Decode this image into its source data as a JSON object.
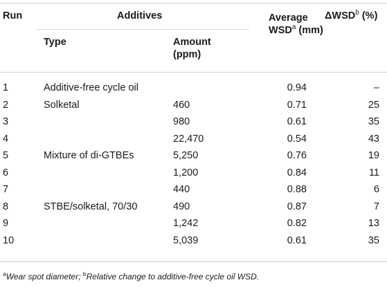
{
  "headers": {
    "run": "Run",
    "additives": "Additives",
    "type": "Type",
    "amount_line1": "Amount",
    "amount_line2": "(ppm)",
    "wsd_line1": "Average",
    "wsd_line2_main": "WSD",
    "wsd_sup": "a",
    "wsd_unit": " (mm)",
    "delta_symbol": "Δ",
    "delta_main": "WSD",
    "delta_sup": "b",
    "delta_unit": " (%)"
  },
  "rows": [
    {
      "run": "1",
      "type": "Additive-free cycle oil",
      "amount": "",
      "wsd": "0.94",
      "delta": "–"
    },
    {
      "run": "2",
      "type": "Solketal",
      "amount": "460",
      "wsd": "0.71",
      "delta": "25"
    },
    {
      "run": "3",
      "type": "",
      "amount": "980",
      "wsd": "0.61",
      "delta": "35"
    },
    {
      "run": "4",
      "type": "",
      "amount": "22,470",
      "wsd": "0.54",
      "delta": "43"
    },
    {
      "run": "5",
      "type": "Mixture of di-GTBEs",
      "amount": "5,250",
      "wsd": "0.76",
      "delta": "19"
    },
    {
      "run": "6",
      "type": "",
      "amount": "1,200",
      "wsd": "0.84",
      "delta": "11"
    },
    {
      "run": "7",
      "type": "",
      "amount": "440",
      "wsd": "0.88",
      "delta": "6"
    },
    {
      "run": "8",
      "type": "STBE/solketal, 70/30",
      "amount": "490",
      "wsd": "0.87",
      "delta": "7"
    },
    {
      "run": "9",
      "type": "",
      "amount": "1,242",
      "wsd": "0.82",
      "delta": "13"
    },
    {
      "run": "10",
      "type": "",
      "amount": "5,039",
      "wsd": "0.61",
      "delta": "35"
    }
  ],
  "footnote": {
    "sup_a": "a",
    "text_a": "Wear spot diameter; ",
    "sup_b": "b",
    "text_b": "Relative change to additive-free cycle oil WSD."
  }
}
